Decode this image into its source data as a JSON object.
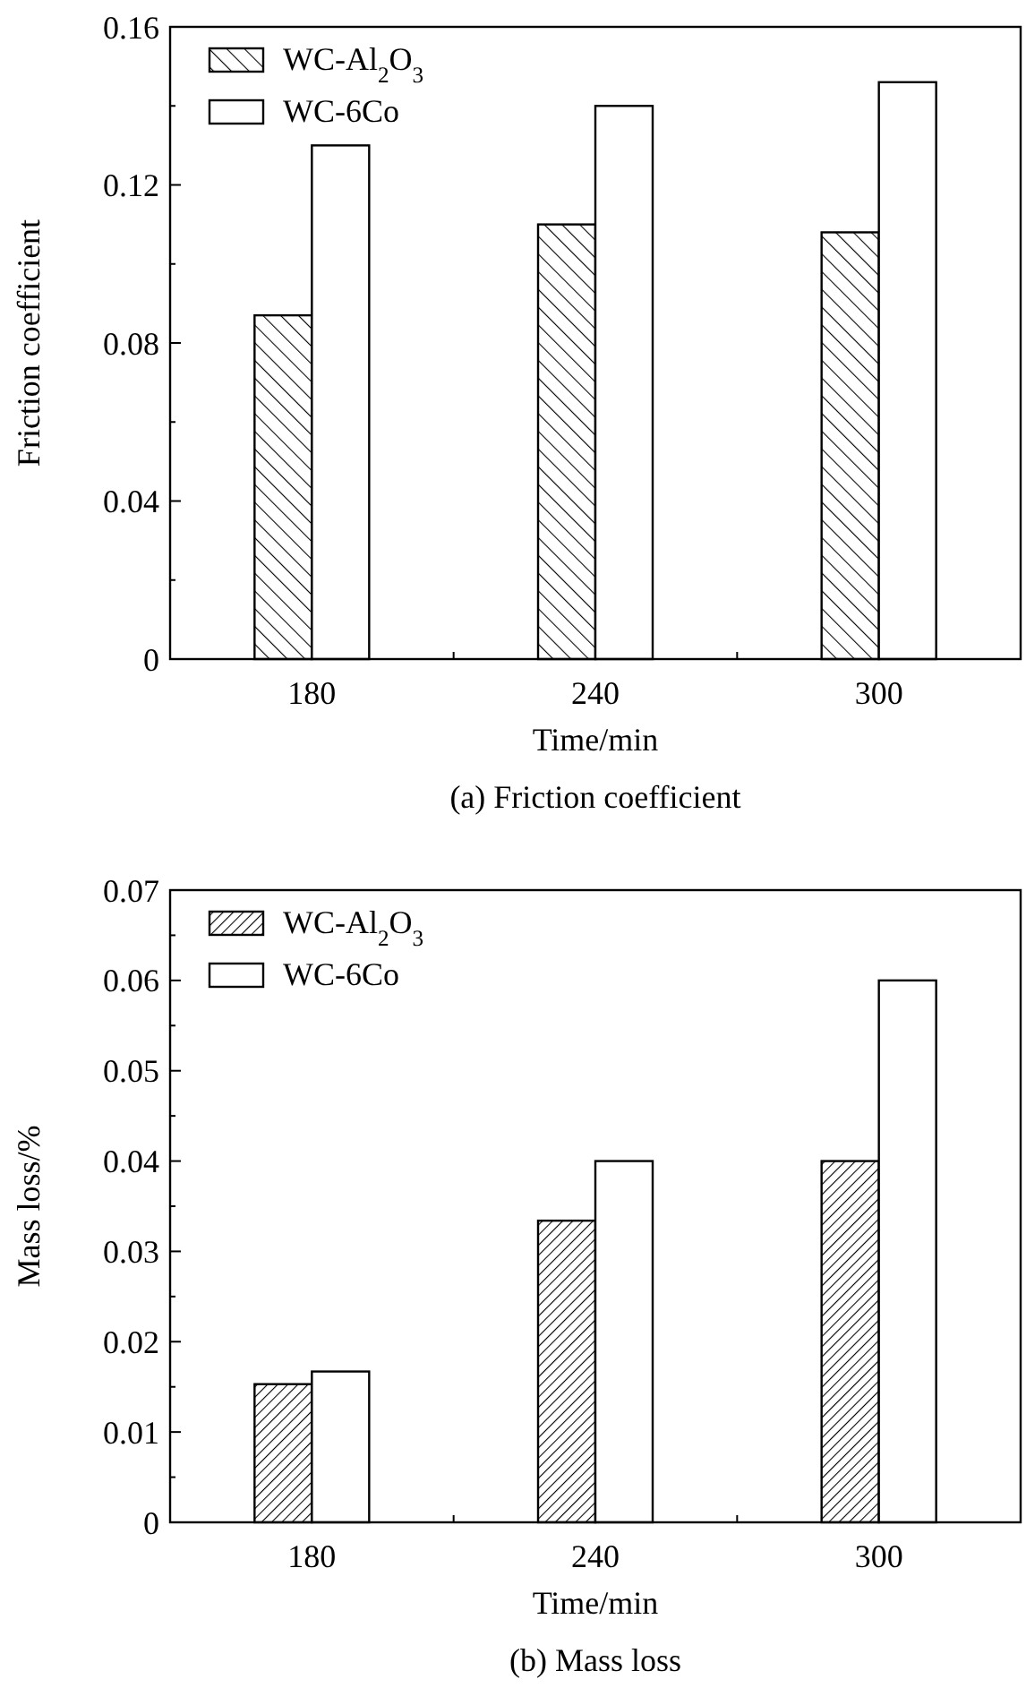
{
  "chart_data": [
    {
      "type": "bar",
      "title": "(a) Friction coefficient",
      "xlabel": "Time/min",
      "ylabel": "Friction coefficient",
      "categories": [
        "180",
        "240",
        "300"
      ],
      "series": [
        {
          "name": "WC-Al$_{2}$O$_{3}$",
          "color": "#000000",
          "values": [
            0.087,
            0.11,
            0.108
          ]
        },
        {
          "name": "WC-6Co",
          "color": "#ffffff",
          "values": [
            0.13,
            0.14,
            0.146
          ]
        }
      ],
      "ylim": [
        0,
        0.16
      ],
      "yticks": [
        0,
        {
          "value": 0.02,
          "label": null
        },
        0.04,
        {
          "value": 0.06,
          "label": null
        },
        0.08,
        {
          "value": 0.1,
          "label": null
        },
        0.12,
        {
          "value": 0.14,
          "label": null
        },
        0.16
      ],
      "grid": false,
      "legend": "top left"
    },
    {
      "type": "bar",
      "title": "(b) Mass loss",
      "xlabel": "Time/min",
      "ylabel": "Mass loss/%",
      "categories": [
        "180",
        "240",
        "300"
      ],
      "series": [
        {
          "name": "WC-Al$_{2}$O$_{3}$",
          "color": "#000000",
          "values": [
            0.0153,
            0.0334,
            0.04
          ]
        },
        {
          "name": "WC-6Co",
          "color": "#ffffff",
          "values": [
            0.0167,
            0.04,
            0.06
          ]
        }
      ],
      "ylim": [
        0,
        0.07
      ],
      "yticks": [
        0,
        {
          "value": 0.005,
          "label": null
        },
        0.01,
        {
          "value": 0.015,
          "label": null
        },
        0.02,
        {
          "value": 0.025,
          "label": null
        },
        0.03,
        {
          "value": 0.035,
          "label": null
        },
        0.04,
        {
          "value": 0.045,
          "label": null
        },
        0.05,
        {
          "value": 0.055,
          "label": null
        },
        0.06,
        {
          "value": 0.065,
          "label": null
        },
        0.07
      ],
      "grid": false,
      "legend": "top left"
    }
  ]
}
